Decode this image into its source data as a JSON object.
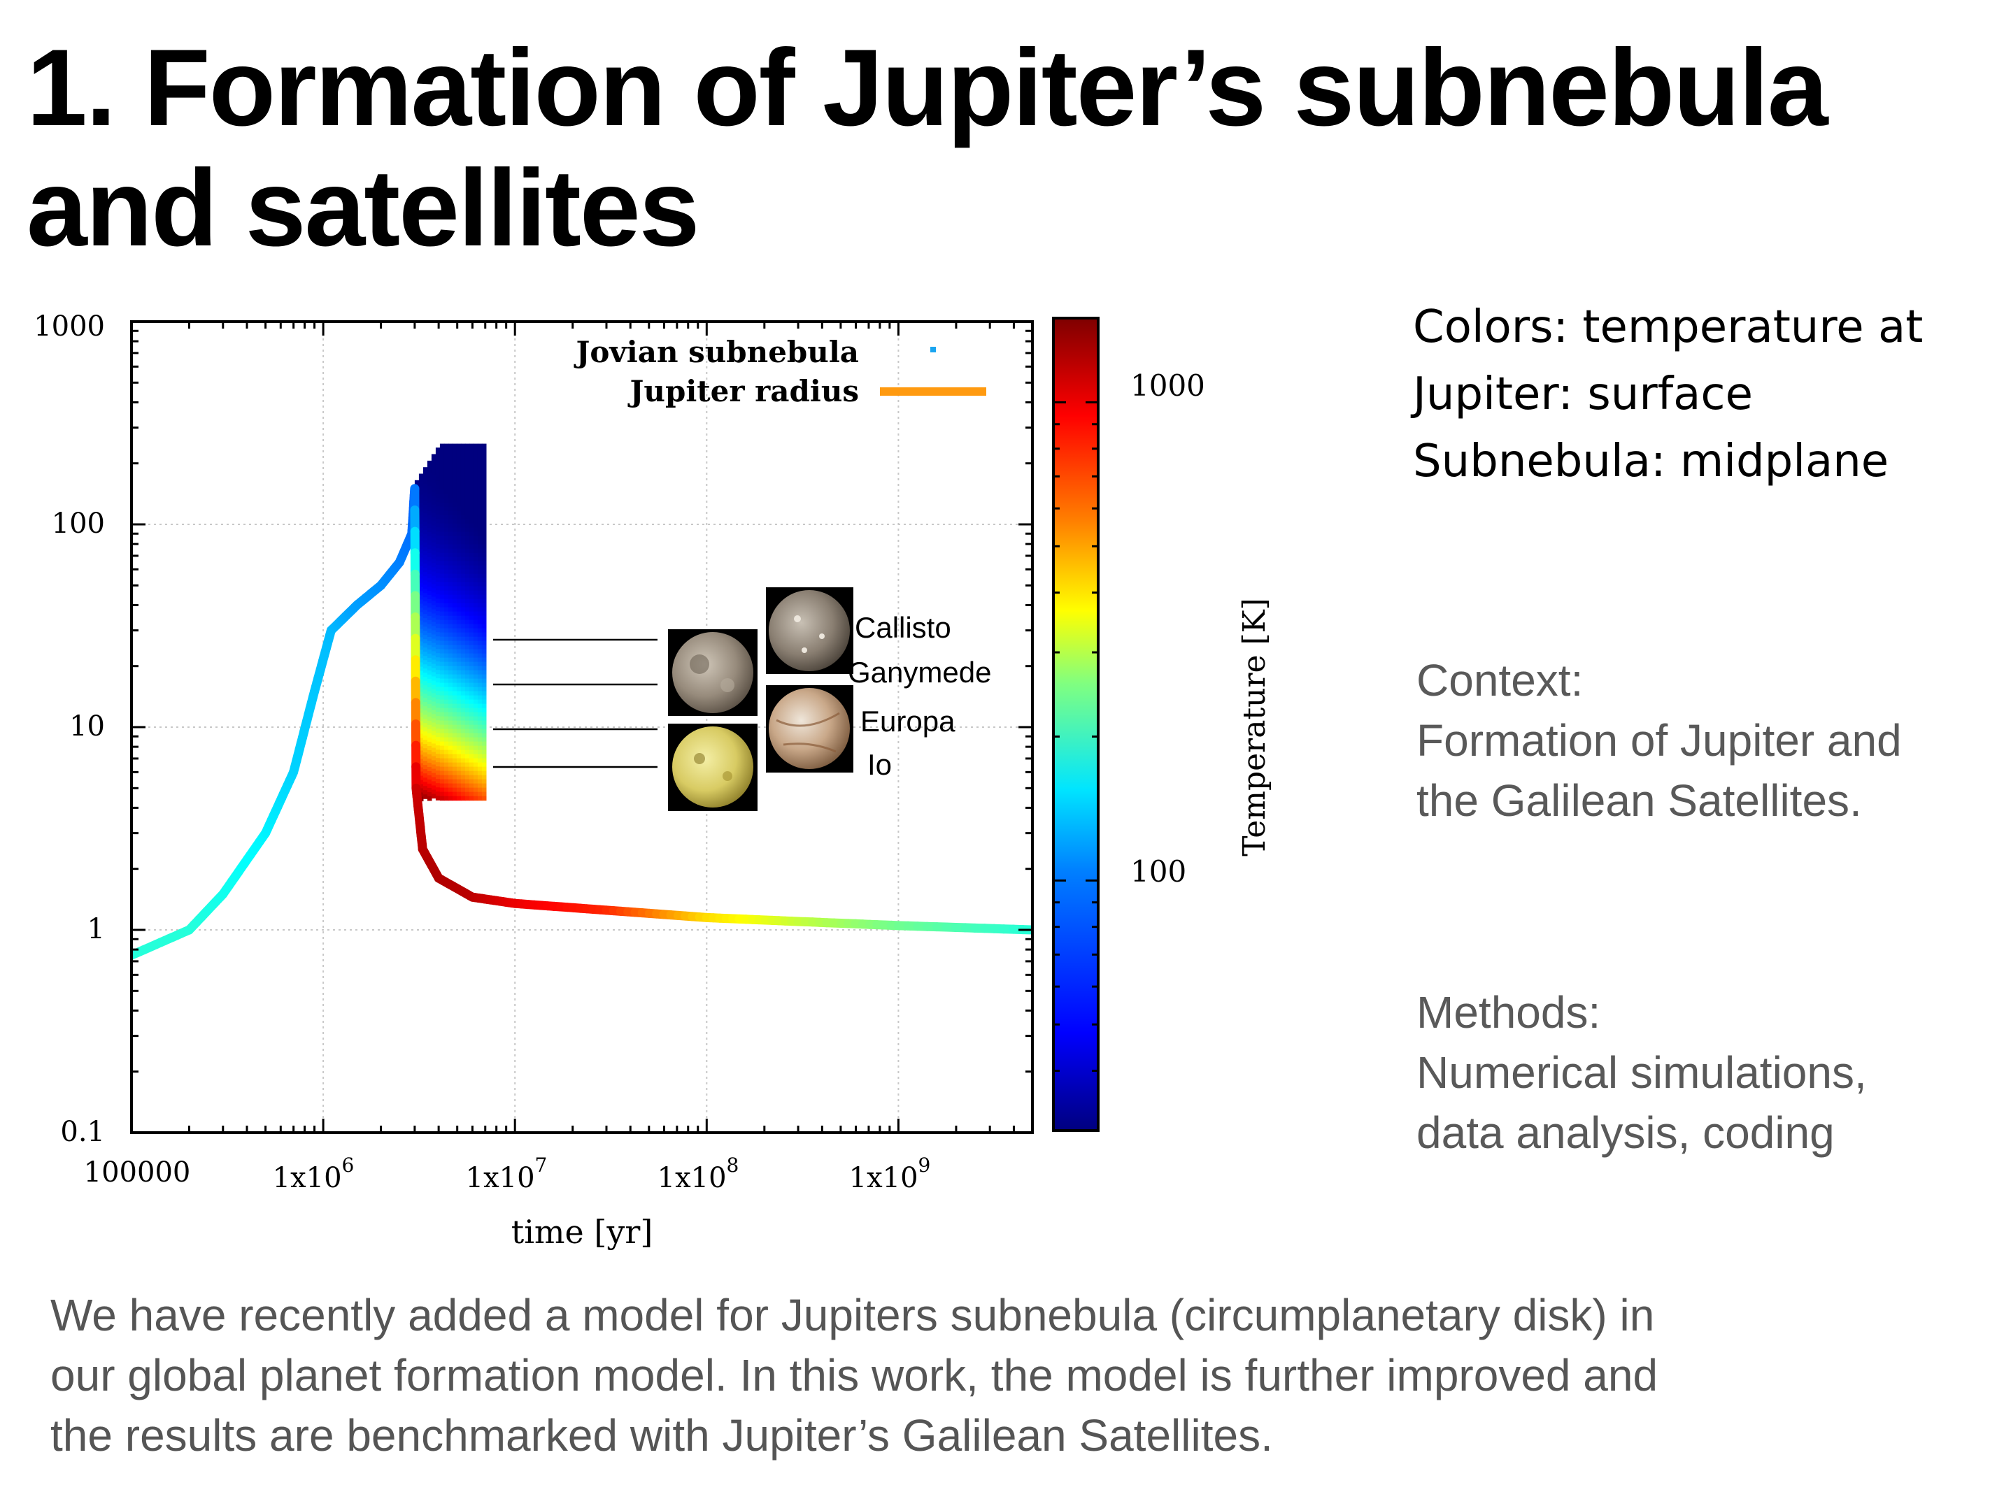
{
  "slide": {
    "title": "1. Formation of Jupiter’s subnebula and satellites"
  },
  "notes": {
    "colors": [
      "Colors:  temperature at",
      "Jupiter: surface",
      "Subnebula: midplane"
    ],
    "context": [
      "Context:",
      "Formation of Jupiter and",
      "the Galilean Satellites."
    ],
    "methods": [
      "Methods:",
      "Numerical simulations,",
      "data analysis, coding"
    ]
  },
  "body_text": [
    "We have recently added a model for Jupiters subnebula (circumplanetary disk) in",
    "our global planet formation model. In this work, the model is further improved and",
    "the results are benchmarked with Jupiter’s Galilean Satellites."
  ],
  "chart_data": {
    "type": "scatter",
    "xlabel": "time [yr]",
    "ylabel": "",
    "x_scale": "log",
    "y_scale": "log",
    "xlim": [
      100000,
      5000000000
    ],
    "ylim": [
      0.1,
      1000
    ],
    "x_tick_labels": [
      "100000",
      "1x10^6",
      "1x10^7",
      "1x10^8",
      "1x10^9"
    ],
    "y_tick_labels": [
      "0.1",
      "1",
      "10",
      "100",
      "1000"
    ],
    "grid": true,
    "legend": {
      "placement": "top-right",
      "entries": [
        "Jovian subnebula",
        "Jupiter radius"
      ]
    },
    "colorbar": {
      "label": "Temperature [K]",
      "scale": "log",
      "range": [
        30,
        1500
      ],
      "tick_labels": [
        "100",
        "1000"
      ],
      "colormap": [
        "#00007f",
        "#0000ff",
        "#0080ff",
        "#00ffff",
        "#80ff80",
        "#ffff00",
        "#ff8000",
        "#ff0000",
        "#7f0000"
      ]
    },
    "series": [
      {
        "name": "Jupiter radius",
        "points": [
          {
            "x": 100000,
            "y": 0.75,
            "T": 150
          },
          {
            "x": 200000,
            "y": 1.0,
            "T": 150
          },
          {
            "x": 300000,
            "y": 1.5,
            "T": 140
          },
          {
            "x": 500000,
            "y": 3.0,
            "T": 125
          },
          {
            "x": 700000,
            "y": 6.0,
            "T": 110
          },
          {
            "x": 900000,
            "y": 15,
            "T": 105
          },
          {
            "x": 1100000,
            "y": 30,
            "T": 100
          },
          {
            "x": 1500000,
            "y": 40,
            "T": 90
          },
          {
            "x": 2000000,
            "y": 50,
            "T": 85
          },
          {
            "x": 2500000,
            "y": 65,
            "T": 80
          },
          {
            "x": 2900000,
            "y": 90,
            "T": 75
          },
          {
            "x": 3000000,
            "y": 150,
            "T": 70
          },
          {
            "x": 3050000,
            "y": 5,
            "T": 1100
          },
          {
            "x": 3300000,
            "y": 2.5,
            "T": 1200
          },
          {
            "x": 4000000,
            "y": 1.8,
            "T": 1250
          },
          {
            "x": 6000000,
            "y": 1.45,
            "T": 1200
          },
          {
            "x": 10000000,
            "y": 1.35,
            "T": 1000
          },
          {
            "x": 30000000,
            "y": 1.25,
            "T": 800
          },
          {
            "x": 100000000,
            "y": 1.15,
            "T": 400
          },
          {
            "x": 300000000,
            "y": 1.1,
            "T": 280
          },
          {
            "x": 1000000000,
            "y": 1.05,
            "T": 200
          },
          {
            "x": 5000000000,
            "y": 1.0,
            "T": 150
          }
        ]
      },
      {
        "name": "Jovian subnebula",
        "x_range": [
          3000000,
          7000000
        ],
        "r_range": [
          4.5,
          250
        ],
        "temperature_range": [
          30,
          1500
        ]
      }
    ],
    "annotations": [
      "Callisto",
      "Ganymede",
      "Europa",
      "Io"
    ],
    "satellite_images": [
      "callisto-image",
      "ganymede-image",
      "europa-image",
      "io-image"
    ]
  }
}
